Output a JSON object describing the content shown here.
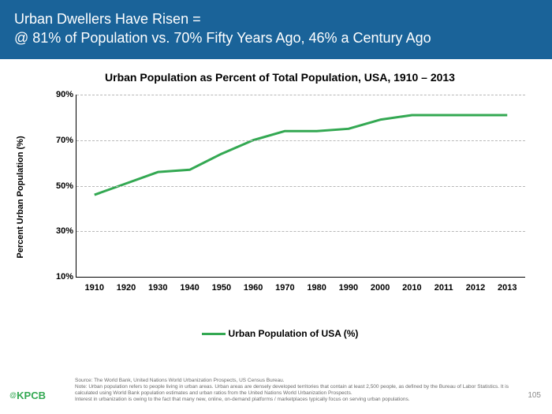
{
  "header": {
    "line1": "Urban Dwellers Have Risen =",
    "line2": "@ 81% of Population vs. 70% Fifty Years Ago, 46% a Century Ago",
    "bg_color": "#1a6399",
    "text_color": "#ffffff",
    "fontsize": 18
  },
  "chart": {
    "type": "line",
    "title": "Urban Population as Percent of Total Population, USA, 1910 – 2013",
    "title_fontsize": 14,
    "y_axis_label": "Percent Urban Population (%)",
    "x_labels": [
      "1910",
      "1920",
      "1930",
      "1940",
      "1950",
      "1960",
      "1970",
      "1980",
      "1990",
      "2000",
      "2010",
      "2011",
      "2012",
      "2013"
    ],
    "y_values": [
      46,
      51,
      56,
      57,
      64,
      70,
      74,
      74,
      75,
      79,
      81,
      81,
      81,
      81
    ],
    "ylim": [
      10,
      90
    ],
    "y_ticks": [
      10,
      30,
      50,
      70,
      90
    ],
    "y_tick_suffix": "%",
    "line_color": "#33a852",
    "line_width": 3,
    "grid_color": "#b8b8b8",
    "background_color": "#ffffff",
    "axis_color": "#000000",
    "tick_fontsize": 11,
    "legend": {
      "label": "Urban Population of USA (%)",
      "swatch_color": "#33a852"
    }
  },
  "footer": {
    "source_line1": "Source: The World Bank, United Nations World Urbanization Prospects, US Census Bureau.",
    "source_line2": "Note: Urban population refers to people living in urban areas. Urban areas are densely developed territories that contain at least 2,500 people, as defined by the Bureau of Labor Statistics. It is calculated using World Bank population estimates and urban ratios from the United Nations World Urbanization Prospects.",
    "source_line3": "Interest in urbanization is owing to the fact that many new, online, on-demand platforms / marketplaces typically focus on serving urban populations.",
    "brand_at": "@",
    "brand": "KPCB",
    "brand_color": "#33a852",
    "page_number": "105"
  }
}
